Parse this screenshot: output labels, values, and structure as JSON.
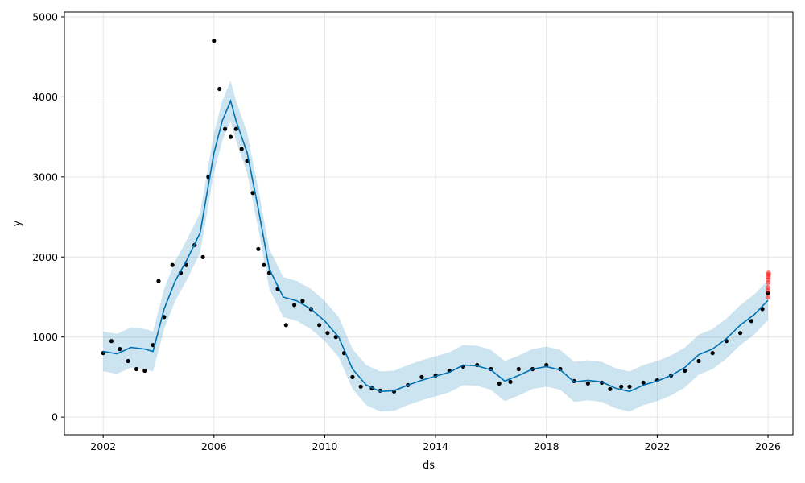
{
  "chart_data": {
    "type": "line",
    "title": "",
    "xlabel": "ds",
    "ylabel": "y",
    "xlim": [
      2000.6,
      2026.9
    ],
    "ylim": [
      -220,
      5060
    ],
    "x_ticks": [
      2002,
      2006,
      2010,
      2014,
      2018,
      2022,
      2026
    ],
    "x_tick_labels": [
      "2002",
      "2006",
      "2010",
      "2014",
      "2018",
      "2022",
      "2026"
    ],
    "y_ticks": [
      0,
      1000,
      2000,
      3000,
      4000,
      5000
    ],
    "y_tick_labels": [
      "0",
      "1000",
      "2000",
      "3000",
      "4000",
      "5000"
    ],
    "grid": true,
    "colors": {
      "observed": "#000000",
      "forecast": "#0072B2",
      "interval": "#0072B2",
      "holdout": "#ff0000",
      "grid": "#e6e6e6"
    },
    "series": [
      {
        "role": "observed",
        "x": [
          2002.0,
          2002.3,
          2002.6,
          2002.9,
          2003.2,
          2003.5,
          2003.8,
          2004.0,
          2004.2,
          2004.5,
          2004.8,
          2005.0,
          2005.3,
          2005.6,
          2005.8,
          2006.0,
          2006.2,
          2006.4,
          2006.6,
          2006.8,
          2007.0,
          2007.2,
          2007.4,
          2007.6,
          2007.8,
          2008.0,
          2008.3,
          2008.6,
          2008.9,
          2009.2,
          2009.5,
          2009.8,
          2010.1,
          2010.4,
          2010.7,
          2011.0,
          2011.3,
          2011.7,
          2012.0,
          2012.5,
          2013.0,
          2013.5,
          2014.0,
          2014.5,
          2015.0,
          2015.5,
          2016.0,
          2016.3,
          2016.7,
          2017.0,
          2017.5,
          2018.0,
          2018.5,
          2019.0,
          2019.5,
          2020.0,
          2020.3,
          2020.7,
          2021.0,
          2021.5,
          2022.0,
          2022.5,
          2023.0,
          2023.5,
          2024.0,
          2024.5,
          2025.0,
          2025.4,
          2025.8,
          2026.0
        ],
        "y": [
          800,
          950,
          850,
          700,
          600,
          580,
          900,
          1700,
          1250,
          1900,
          1800,
          1900,
          2150,
          2000,
          3000,
          4700,
          4100,
          3600,
          3500,
          3600,
          3350,
          3200,
          2800,
          2100,
          1900,
          1800,
          1600,
          1150,
          1400,
          1450,
          1350,
          1150,
          1050,
          1000,
          800,
          500,
          380,
          360,
          330,
          320,
          400,
          500,
          520,
          580,
          630,
          650,
          600,
          420,
          440,
          600,
          600,
          650,
          600,
          450,
          420,
          430,
          350,
          380,
          380,
          430,
          460,
          520,
          580,
          700,
          800,
          950,
          1050,
          1200,
          1350,
          1550
        ]
      },
      {
        "role": "forecast",
        "x": [
          2002.0,
          2002.5,
          2003.0,
          2003.5,
          2003.8,
          2004.2,
          2004.6,
          2005.0,
          2005.5,
          2006.0,
          2006.3,
          2006.6,
          2006.8,
          2007.2,
          2007.6,
          2008.0,
          2008.5,
          2009.0,
          2009.5,
          2010.0,
          2010.5,
          2011.0,
          2011.5,
          2012.0,
          2012.5,
          2013.0,
          2013.5,
          2014.0,
          2014.5,
          2015.0,
          2015.5,
          2016.0,
          2016.5,
          2017.0,
          2017.5,
          2018.0,
          2018.5,
          2019.0,
          2019.5,
          2020.0,
          2020.5,
          2021.0,
          2021.5,
          2022.0,
          2022.5,
          2023.0,
          2023.5,
          2024.0,
          2024.5,
          2025.0,
          2025.5,
          2026.0
        ],
        "y": [
          820,
          790,
          870,
          850,
          820,
          1350,
          1700,
          1950,
          2300,
          3300,
          3700,
          3950,
          3700,
          3300,
          2600,
          1850,
          1500,
          1450,
          1350,
          1200,
          1000,
          600,
          400,
          320,
          330,
          400,
          460,
          510,
          560,
          650,
          640,
          590,
          450,
          520,
          600,
          630,
          590,
          440,
          460,
          440,
          360,
          320,
          400,
          450,
          520,
          620,
          780,
          850,
          980,
          1150,
          1280,
          1460
        ]
      },
      {
        "role": "interval_upper",
        "x": [
          2002.0,
          2002.5,
          2003.0,
          2003.5,
          2003.8,
          2004.2,
          2004.6,
          2005.0,
          2005.5,
          2006.0,
          2006.3,
          2006.6,
          2006.8,
          2007.2,
          2007.6,
          2008.0,
          2008.5,
          2009.0,
          2009.5,
          2010.0,
          2010.5,
          2011.0,
          2011.5,
          2012.0,
          2012.5,
          2013.0,
          2013.5,
          2014.0,
          2014.5,
          2015.0,
          2015.5,
          2016.0,
          2016.5,
          2017.0,
          2017.5,
          2018.0,
          2018.5,
          2019.0,
          2019.5,
          2020.0,
          2020.5,
          2021.0,
          2021.5,
          2022.0,
          2022.5,
          2023.0,
          2023.5,
          2024.0,
          2024.5,
          2025.0,
          2025.5,
          2026.0
        ],
        "y": [
          1070,
          1040,
          1120,
          1100,
          1070,
          1600,
          1950,
          2200,
          2550,
          3550,
          3950,
          4200,
          3950,
          3550,
          2850,
          2100,
          1750,
          1700,
          1600,
          1450,
          1250,
          850,
          650,
          570,
          580,
          650,
          710,
          760,
          810,
          900,
          890,
          840,
          700,
          770,
          850,
          880,
          840,
          690,
          710,
          690,
          610,
          570,
          650,
          700,
          770,
          870,
          1030,
          1100,
          1230,
          1400,
          1530,
          1710
        ]
      },
      {
        "role": "interval_lower",
        "x": [
          2002.0,
          2002.5,
          2003.0,
          2003.5,
          2003.8,
          2004.2,
          2004.6,
          2005.0,
          2005.5,
          2006.0,
          2006.3,
          2006.6,
          2006.8,
          2007.2,
          2007.6,
          2008.0,
          2008.5,
          2009.0,
          2009.5,
          2010.0,
          2010.5,
          2011.0,
          2011.5,
          2012.0,
          2012.5,
          2013.0,
          2013.5,
          2014.0,
          2014.5,
          2015.0,
          2015.5,
          2016.0,
          2016.5,
          2017.0,
          2017.5,
          2018.0,
          2018.5,
          2019.0,
          2019.5,
          2020.0,
          2020.5,
          2021.0,
          2021.5,
          2022.0,
          2022.5,
          2023.0,
          2023.5,
          2024.0,
          2024.5,
          2025.0,
          2025.5,
          2026.0
        ],
        "y": [
          570,
          540,
          620,
          600,
          570,
          1100,
          1450,
          1700,
          2050,
          3050,
          3450,
          3700,
          3450,
          3050,
          2350,
          1600,
          1250,
          1200,
          1100,
          950,
          750,
          350,
          150,
          70,
          80,
          150,
          210,
          260,
          310,
          400,
          390,
          340,
          200,
          270,
          350,
          380,
          340,
          190,
          210,
          190,
          110,
          70,
          150,
          200,
          270,
          370,
          530,
          600,
          730,
          900,
          1030,
          1210
        ]
      },
      {
        "role": "holdout",
        "x": [
          2026.0,
          2026.0,
          2026.0,
          2026.01,
          2026.01,
          2026.01,
          2026.02,
          2026.02
        ],
        "y": [
          1500,
          1580,
          1620,
          1680,
          1720,
          1750,
          1780,
          1800
        ]
      }
    ]
  }
}
